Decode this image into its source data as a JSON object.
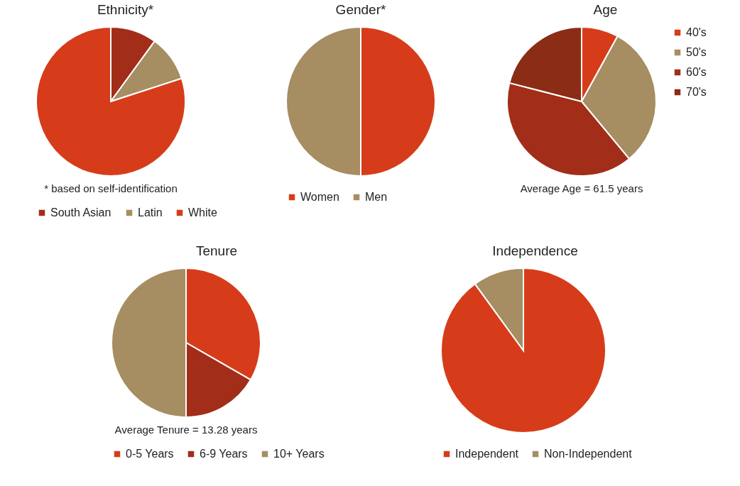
{
  "chart_data": [
    {
      "type": "pie",
      "title": "Ethnicity*",
      "categories": [
        "South Asian",
        "Latin",
        "White"
      ],
      "values": [
        10,
        10,
        80
      ],
      "colors": [
        "#a22d18",
        "#a68d62",
        "#d63c1a"
      ],
      "legend": "bottom",
      "annotations": [
        "* based on self-identification"
      ]
    },
    {
      "type": "pie",
      "title": "Gender*",
      "categories": [
        "Women",
        "Men"
      ],
      "values": [
        50,
        50
      ],
      "colors": [
        "#d63c1a",
        "#a68d62"
      ],
      "legend": "bottom"
    },
    {
      "type": "pie",
      "title": "Age",
      "categories": [
        "40's",
        "50's",
        "60's",
        "70's"
      ],
      "values": [
        8,
        31,
        40,
        21
      ],
      "colors": [
        "#d63c1a",
        "#a68d62",
        "#a22d18",
        "#8b2c14"
      ],
      "legend": "right",
      "annotations": [
        "Average Age = 61.5 years"
      ]
    },
    {
      "type": "pie",
      "title": "Tenure",
      "categories": [
        "0-5 Years",
        "6-9 Years",
        "10+ Years"
      ],
      "values": [
        33.3,
        16.7,
        50
      ],
      "colors": [
        "#d63c1a",
        "#a22d18",
        "#a68d62"
      ],
      "legend": "bottom",
      "annotations": [
        "Average Tenure = 13.28 years"
      ]
    },
    {
      "type": "pie",
      "title": "Independence",
      "categories": [
        "Independent",
        "Non-Independent"
      ],
      "values": [
        90,
        10
      ],
      "colors": [
        "#d63c1a",
        "#a68d62"
      ],
      "legend": "bottom"
    }
  ]
}
